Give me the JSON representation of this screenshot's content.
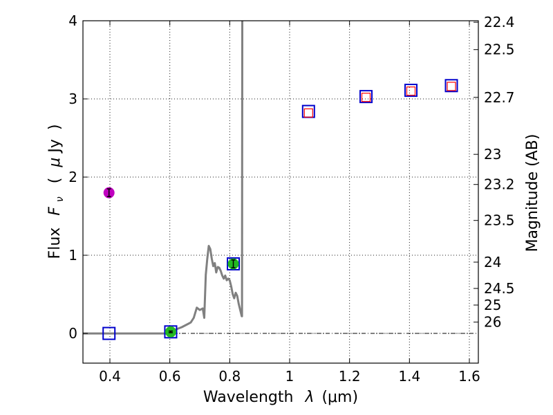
{
  "chart_data": {
    "type": "scatter",
    "title": "",
    "xlabel": "Wavelength",
    "xlabel_symbol": "λ",
    "xlabel_unit": "(μm)",
    "ylabel": "Flux",
    "ylabel_symbol": "F",
    "ylabel_symbol_sub": "ν",
    "ylabel_unit_open": "(",
    "ylabel_unit_mu": "μ",
    "ylabel_unit_rest": "Jy",
    "ylabel_unit_close": ")",
    "y2label": "Magnitude (AB)",
    "xlim": [
      0.31,
      1.63
    ],
    "ylim": [
      -0.38,
      4.0
    ],
    "x_ticks": [
      0.4,
      0.6,
      0.8,
      1.0,
      1.2,
      1.4,
      1.6
    ],
    "x_tick_labels": [
      "0.4",
      "0.6",
      "0.8",
      "1",
      "1.2",
      "1.4",
      "1.6"
    ],
    "y_ticks": [
      0,
      1,
      2,
      3,
      4
    ],
    "y_tick_labels": [
      "0",
      "1",
      "2",
      "3",
      "4"
    ],
    "y2_ticks": [
      {
        "label": "22.4",
        "mag": 22.4
      },
      {
        "label": "22.5",
        "mag": 22.5
      },
      {
        "label": "22.7",
        "mag": 22.7
      },
      {
        "label": "23",
        "mag": 23.0
      },
      {
        "label": "23.2",
        "mag": 23.2
      },
      {
        "label": "23.5",
        "mag": 23.5
      },
      {
        "label": "24",
        "mag": 24.0
      },
      {
        "label": "24.5",
        "mag": 24.5
      },
      {
        "label": "25",
        "mag": 25.0
      },
      {
        "label": "26",
        "mag": 26.0
      }
    ],
    "grid": true,
    "series": [
      {
        "name": "model spectrum",
        "kind": "line",
        "color": "#808080",
        "x": [
          0.31,
          0.6,
          0.62,
          0.64,
          0.66,
          0.67,
          0.68,
          0.69,
          0.7,
          0.71,
          0.715,
          0.72,
          0.725,
          0.73,
          0.735,
          0.74,
          0.745,
          0.75,
          0.755,
          0.76,
          0.765,
          0.77,
          0.775,
          0.78,
          0.785,
          0.79,
          0.795,
          0.8,
          0.805,
          0.81,
          0.815,
          0.82,
          0.825,
          0.83,
          0.835,
          0.84,
          0.841,
          0.842
        ],
        "y": [
          0.0,
          0.0,
          0.05,
          0.08,
          0.12,
          0.14,
          0.2,
          0.33,
          0.3,
          0.32,
          0.2,
          0.75,
          0.95,
          1.12,
          1.08,
          0.96,
          0.86,
          0.9,
          0.78,
          0.85,
          0.84,
          0.8,
          0.74,
          0.7,
          0.74,
          0.68,
          0.7,
          0.68,
          0.6,
          0.5,
          0.45,
          0.52,
          0.48,
          0.38,
          0.3,
          0.22,
          0.22,
          4.0
        ]
      },
      {
        "name": "observed detection (magenta)",
        "kind": "points",
        "color": "#c000c0",
        "x": [
          0.397
        ],
        "y": [
          1.8
        ],
        "yerr": [
          0.05
        ]
      },
      {
        "name": "observed detections (green)",
        "kind": "points",
        "color": "#22b822",
        "x": [
          0.603,
          0.812
        ],
        "y": [
          0.02,
          0.89
        ],
        "yerr": [
          0.01,
          0.05
        ]
      },
      {
        "name": "model photometry (blue squares)",
        "kind": "squares",
        "color": "#0000cc",
        "x": [
          0.397,
          0.603,
          0.812,
          1.063,
          1.255,
          1.405,
          1.54
        ],
        "y": [
          0.0,
          0.02,
          0.89,
          2.84,
          3.03,
          3.11,
          3.17
        ]
      },
      {
        "name": "upper limits / measurements (red squares)",
        "kind": "small-squares",
        "color": "#ff0000",
        "x": [
          1.063,
          1.255,
          1.405,
          1.54
        ],
        "y": [
          2.82,
          3.02,
          3.1,
          3.16
        ]
      }
    ]
  }
}
